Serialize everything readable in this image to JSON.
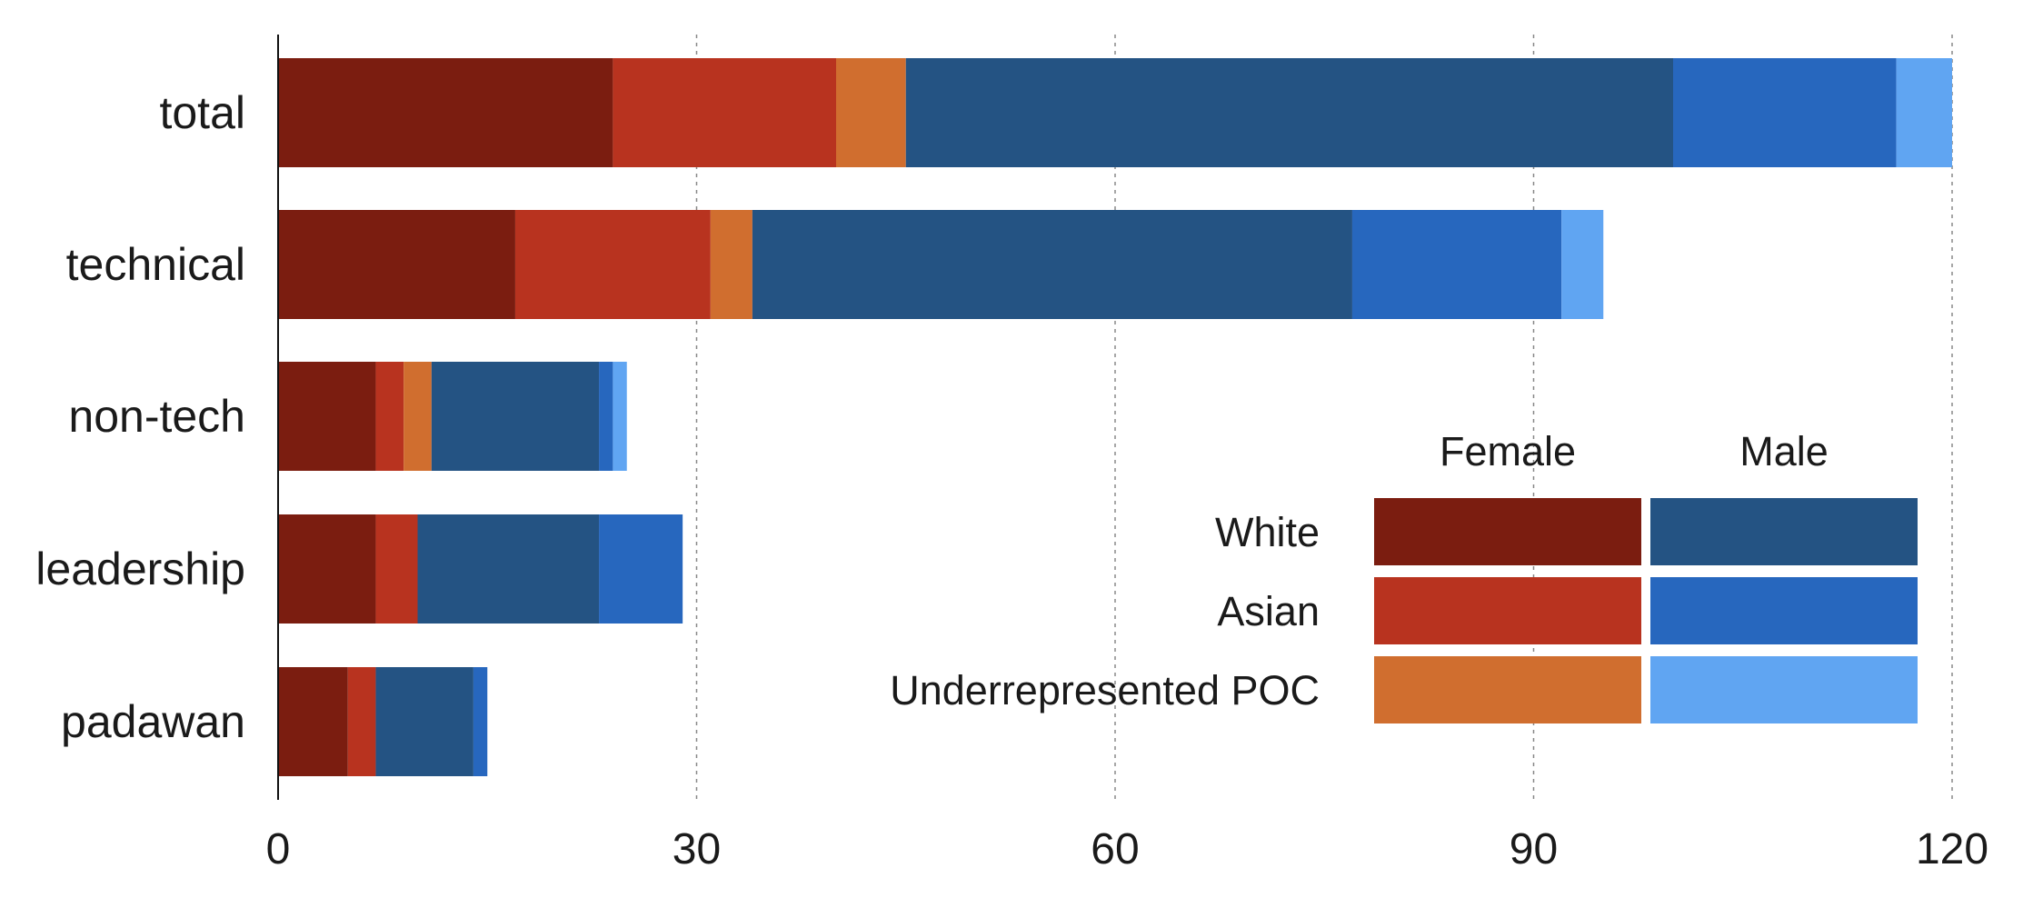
{
  "chart_data": {
    "type": "bar",
    "orientation": "horizontal",
    "stacked": true,
    "categories": [
      "total",
      "technical",
      "non-tech",
      "leadership",
      "padawan"
    ],
    "series": [
      {
        "gender": "Female",
        "group": "White",
        "color": "#7B1D10",
        "values": [
          24,
          17,
          7,
          7,
          5
        ]
      },
      {
        "gender": "Female",
        "group": "Asian",
        "color": "#B8331F",
        "values": [
          16,
          14,
          2,
          3,
          2
        ]
      },
      {
        "gender": "Female",
        "group": "Underrepresented POC",
        "color": "#D06E2F",
        "values": [
          5,
          3,
          2,
          0,
          0
        ]
      },
      {
        "gender": "Male",
        "group": "White",
        "color": "#245383",
        "values": [
          55,
          43,
          12,
          13,
          7
        ]
      },
      {
        "gender": "Male",
        "group": "Asian",
        "color": "#2767BE",
        "values": [
          16,
          15,
          1,
          6,
          1
        ]
      },
      {
        "gender": "Male",
        "group": "Underrepresented POC",
        "color": "#60A5F2",
        "values": [
          4,
          3,
          1,
          0,
          0
        ]
      }
    ],
    "xlim": [
      0,
      120
    ],
    "xticks": [
      "0",
      "30",
      "60",
      "90",
      "120"
    ],
    "xtick_values": [
      0,
      30,
      60,
      90,
      120
    ],
    "grid": "vertical dashed",
    "legend": {
      "placement": "bottom-right",
      "columns": [
        "Female",
        "Male"
      ],
      "rows": [
        "White",
        "Asian",
        "Underrepresented POC"
      ]
    }
  }
}
